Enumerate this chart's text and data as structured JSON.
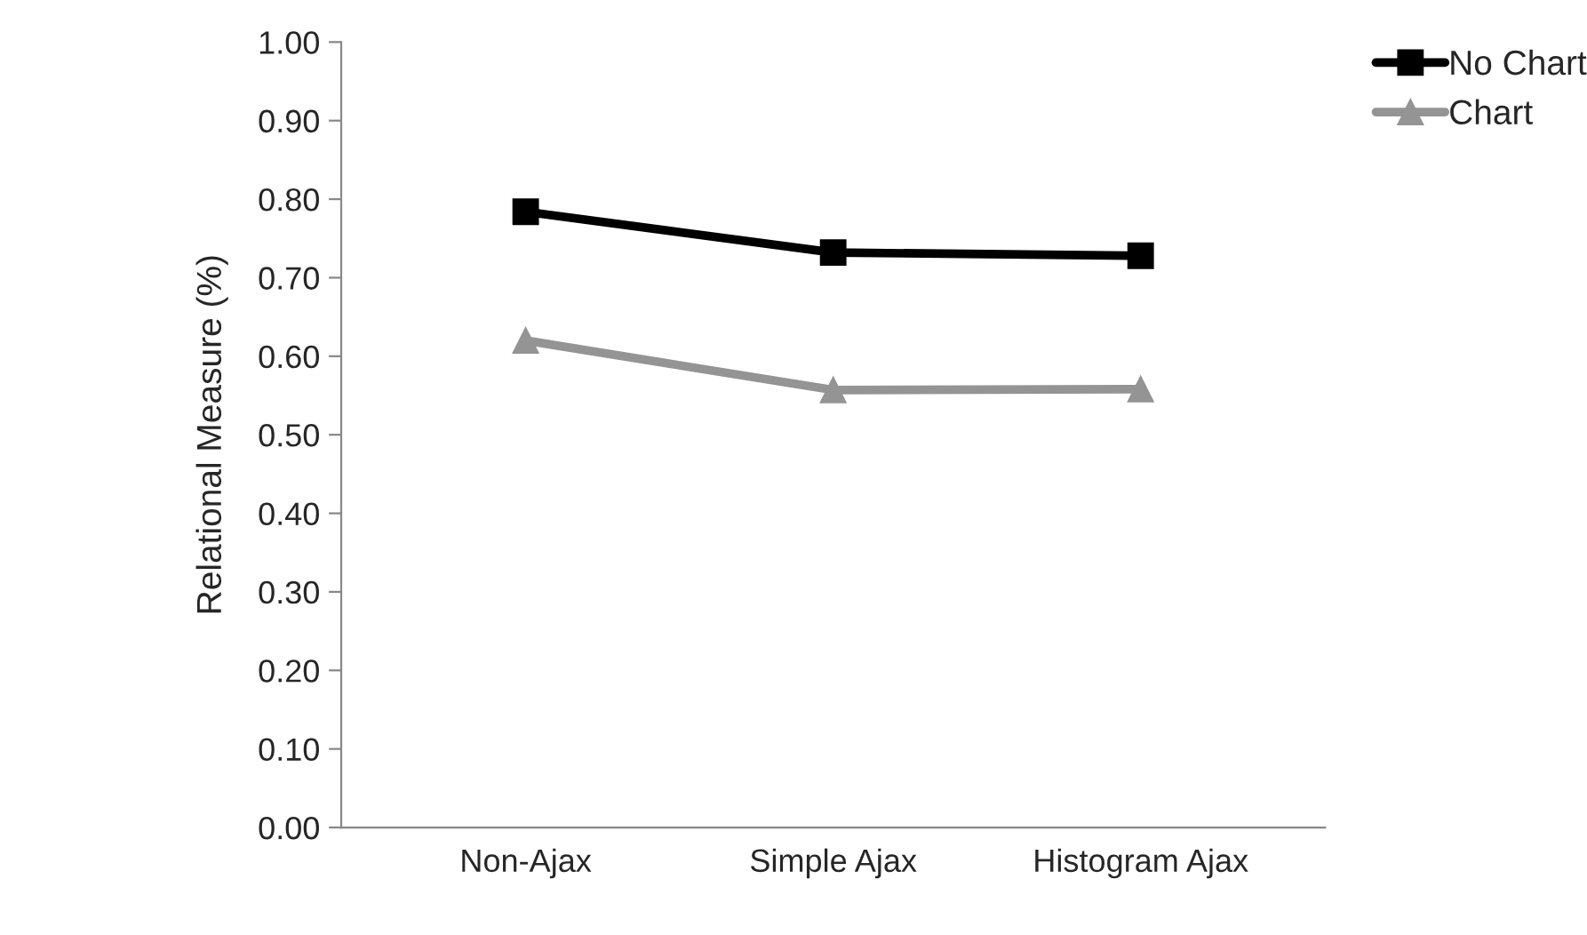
{
  "chart_data": {
    "type": "line",
    "ylabel": "Relational Measure (%)",
    "categories": [
      "Non-Ajax",
      "Simple Ajax",
      "Histogram Ajax"
    ],
    "series": [
      {
        "name": "No Chart",
        "color": "#000000",
        "marker": "square",
        "values": [
          0.784,
          0.732,
          0.728
        ]
      },
      {
        "name": "Chart",
        "color": "#949494",
        "marker": "triangle",
        "values": [
          0.62,
          0.557,
          0.558
        ]
      }
    ],
    "ylim": [
      0,
      1
    ],
    "yticks": [
      {
        "value": 0,
        "label": "0.00"
      },
      {
        "value": 0.1,
        "label": "0.10"
      },
      {
        "value": 0.2,
        "label": "0.20"
      },
      {
        "value": 0.3,
        "label": "0.30"
      },
      {
        "value": 0.4,
        "label": "0.40"
      },
      {
        "value": 0.5,
        "label": "0.50"
      },
      {
        "value": 0.6,
        "label": "0.60"
      },
      {
        "value": 0.7,
        "label": "0.70"
      },
      {
        "value": 0.8,
        "label": "0.80"
      },
      {
        "value": 0.9,
        "label": "0.90"
      },
      {
        "value": 1,
        "label": "1.00"
      }
    ],
    "grid": false,
    "legend": "top right",
    "line_style": "solid"
  }
}
